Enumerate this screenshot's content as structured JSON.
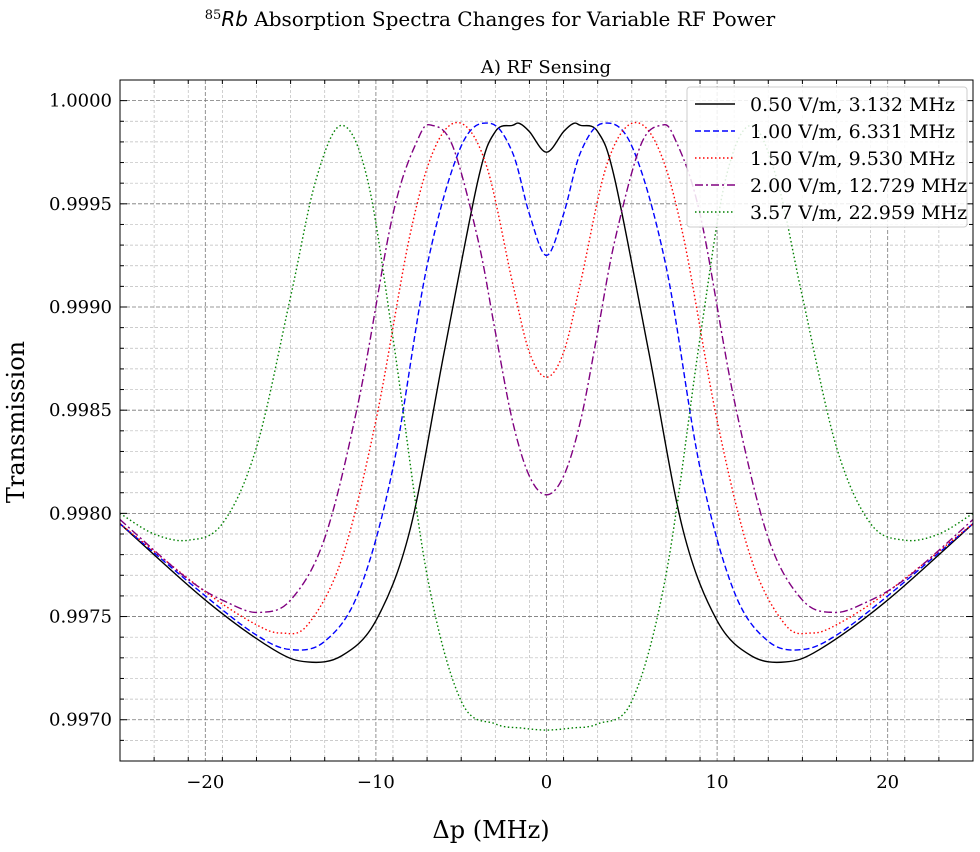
{
  "chart_data": {
    "type": "line",
    "title_sup": "85",
    "title_italic": "Rb",
    "title_rest": " Absorption Spectra Changes for Variable RF Power",
    "subtitle": "A) RF Sensing",
    "xlabel": "Δp (MHz)",
    "ylabel": "Transmission",
    "xlim": [
      -25,
      25
    ],
    "ylim": [
      0.9968,
      1.0001
    ],
    "x_ticks": [
      -20,
      -10,
      0,
      10,
      20
    ],
    "x_tick_labels": [
      "−20",
      "−10",
      "0",
      "10",
      "20"
    ],
    "y_ticks": [
      0.997,
      0.9975,
      0.998,
      0.9985,
      0.999,
      0.9995,
      1.0
    ],
    "y_tick_labels": [
      "0.9970",
      "0.9975",
      "0.9980",
      "0.9985",
      "0.9990",
      "0.9995",
      "1.0000"
    ],
    "grid": true,
    "legend_position": "top-right",
    "series": [
      {
        "name": "0.50 V/m, 3.132 MHz",
        "color": "#000000",
        "dash": "solid",
        "x": [
          -25,
          -20,
          -16,
          -14,
          -12,
          -10,
          -8,
          -6,
          -4,
          -3,
          -2,
          -1.6,
          -1,
          0,
          1,
          1.6,
          2,
          3,
          4,
          6,
          8,
          10,
          12,
          14,
          16,
          20,
          25
        ],
        "y": [
          0.99795,
          0.99758,
          0.99734,
          0.99728,
          0.99731,
          0.99748,
          0.99792,
          0.99878,
          0.99962,
          0.99985,
          0.99988,
          0.99989,
          0.99985,
          0.99975,
          0.99985,
          0.99989,
          0.99988,
          0.99985,
          0.99962,
          0.99878,
          0.99792,
          0.99748,
          0.99731,
          0.99728,
          0.99734,
          0.99758,
          0.99795
        ]
      },
      {
        "name": "1.00 V/m, 6.331 MHz",
        "color": "#0000ff",
        "dash": "dashed",
        "x": [
          -25,
          -20,
          -17,
          -15,
          -13,
          -11,
          -9,
          -7,
          -5,
          -3.3,
          -2,
          -1,
          0,
          1,
          2,
          3.3,
          5,
          7,
          9,
          11,
          13,
          15,
          17,
          20,
          25
        ],
        "y": [
          0.99795,
          0.9976,
          0.99741,
          0.99734,
          0.99738,
          0.99762,
          0.99822,
          0.9992,
          0.99978,
          0.99989,
          0.99975,
          0.99945,
          0.99925,
          0.99945,
          0.99975,
          0.99989,
          0.99978,
          0.9992,
          0.99822,
          0.99762,
          0.99738,
          0.99734,
          0.99741,
          0.9976,
          0.99795
        ]
      },
      {
        "name": "1.50 V/m, 9.530 MHz",
        "color": "#ff0000",
        "dash": "dotted",
        "x": [
          -25,
          -20,
          -17,
          -15.5,
          -14,
          -12,
          -10,
          -8,
          -6.5,
          -5,
          -3.5,
          -2,
          -1,
          0,
          1,
          2,
          3.5,
          5,
          6.5,
          8,
          10,
          12,
          14,
          15.5,
          17,
          20,
          25
        ],
        "y": [
          0.99795,
          0.99762,
          0.99746,
          0.99742,
          0.99746,
          0.99778,
          0.99845,
          0.99935,
          0.99978,
          0.99989,
          0.99968,
          0.99912,
          0.99878,
          0.99866,
          0.99878,
          0.99912,
          0.99968,
          0.99989,
          0.99978,
          0.99935,
          0.99845,
          0.99778,
          0.99746,
          0.99742,
          0.99746,
          0.99762,
          0.99795
        ]
      },
      {
        "name": "2.00 V/m, 12.729 MHz",
        "color": "#800080",
        "dash": "dashdot",
        "x": [
          -25,
          -21,
          -18.5,
          -16.8,
          -15,
          -13,
          -11,
          -9,
          -7.5,
          -6.7,
          -5.5,
          -4,
          -3,
          -2,
          -1,
          0,
          1,
          2,
          3,
          4,
          5.5,
          6.7,
          7.5,
          9,
          11,
          13,
          15,
          16.8,
          18.5,
          21,
          25
        ],
        "y": [
          0.99797,
          0.99768,
          0.99756,
          0.99752,
          0.99758,
          0.99788,
          0.99855,
          0.99945,
          0.99982,
          0.99988,
          0.99978,
          0.99932,
          0.99888,
          0.99845,
          0.99818,
          0.99809,
          0.99818,
          0.99845,
          0.99888,
          0.99932,
          0.99978,
          0.99988,
          0.99982,
          0.99945,
          0.99855,
          0.99788,
          0.99758,
          0.99752,
          0.99756,
          0.99768,
          0.99797
        ]
      },
      {
        "name": "3.57 V/m, 22.959 MHz",
        "color": "#008000",
        "dash": "dotted",
        "x": [
          -25,
          -23,
          -21,
          -19,
          -17,
          -15,
          -13.5,
          -12,
          -10.5,
          -9,
          -7,
          -5,
          -3,
          -1.5,
          0,
          1.5,
          3,
          5,
          7,
          9,
          10.5,
          12,
          13.5,
          15,
          17,
          19,
          21,
          23,
          25
        ],
        "y": [
          0.998,
          0.9979,
          0.99787,
          0.99795,
          0.99832,
          0.99905,
          0.99962,
          0.99988,
          0.99962,
          0.99885,
          0.9977,
          0.99709,
          0.99698,
          0.99696,
          0.99695,
          0.99696,
          0.99698,
          0.99709,
          0.9977,
          0.99885,
          0.99962,
          0.99988,
          0.99962,
          0.99905,
          0.99832,
          0.99795,
          0.99787,
          0.9979,
          0.998
        ]
      }
    ]
  }
}
